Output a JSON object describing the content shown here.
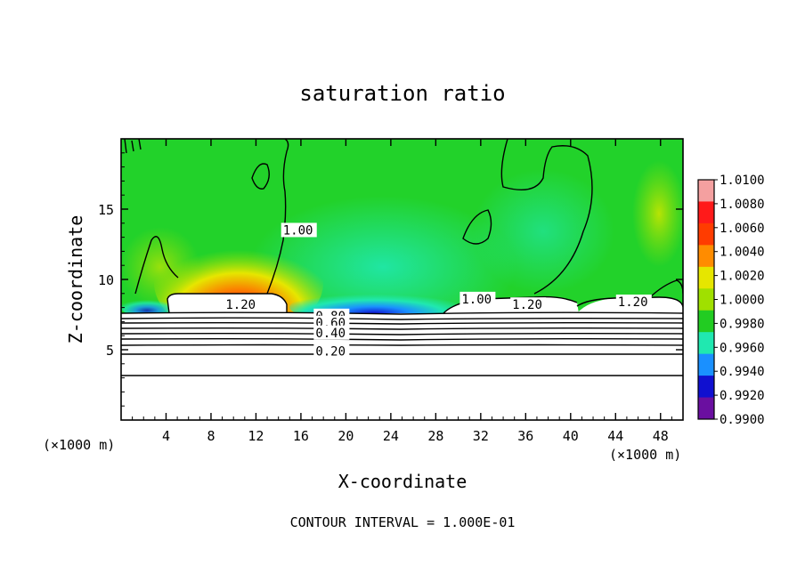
{
  "chart_data": {
    "type": "heatmap",
    "title": "saturation ratio",
    "xlabel": "X-coordinate",
    "ylabel": "Z-coordinate",
    "x_unit": "(×1000 m)",
    "y_unit": "(×1000 m)",
    "xlim": [
      0,
      50
    ],
    "ylim": [
      0,
      20
    ],
    "x_ticks": [
      4,
      8,
      12,
      16,
      20,
      24,
      28,
      32,
      36,
      40,
      44,
      48
    ],
    "y_ticks": [
      5,
      10,
      15
    ],
    "footer": "CONTOUR INTERVAL = 1.000E-01",
    "colorbar": {
      "labels": [
        "1.0100",
        "1.0080",
        "1.0060",
        "1.0040",
        "1.0020",
        "1.0000",
        "0.9980",
        "0.9960",
        "0.9940",
        "0.9920",
        "0.9900"
      ],
      "colors": [
        "#f4a0a0",
        "#ff1a1a",
        "#ff3c00",
        "#ff8c00",
        "#e6e600",
        "#a0e000",
        "#22cc22",
        "#20e8b0",
        "#1a90ff",
        "#1010d0",
        "#6a0fa0"
      ]
    },
    "contour_labels": [
      {
        "text": "1.20",
        "x": 9.3,
        "z": 7.9
      },
      {
        "text": "1.20",
        "x": 34.8,
        "z": 7.9
      },
      {
        "text": "1.20",
        "x": 44.2,
        "z": 8.1
      },
      {
        "text": "1.00",
        "x": 14.4,
        "z": 13.2
      },
      {
        "text": "1.00",
        "x": 30.3,
        "z": 8.3
      },
      {
        "text": "0.80",
        "x": 17.3,
        "z": 7.1
      },
      {
        "text": "0.60",
        "x": 17.3,
        "z": 6.6
      },
      {
        "text": "0.40",
        "x": 17.3,
        "z": 5.9
      },
      {
        "text": "0.20",
        "x": 17.3,
        "z": 4.6
      }
    ]
  }
}
